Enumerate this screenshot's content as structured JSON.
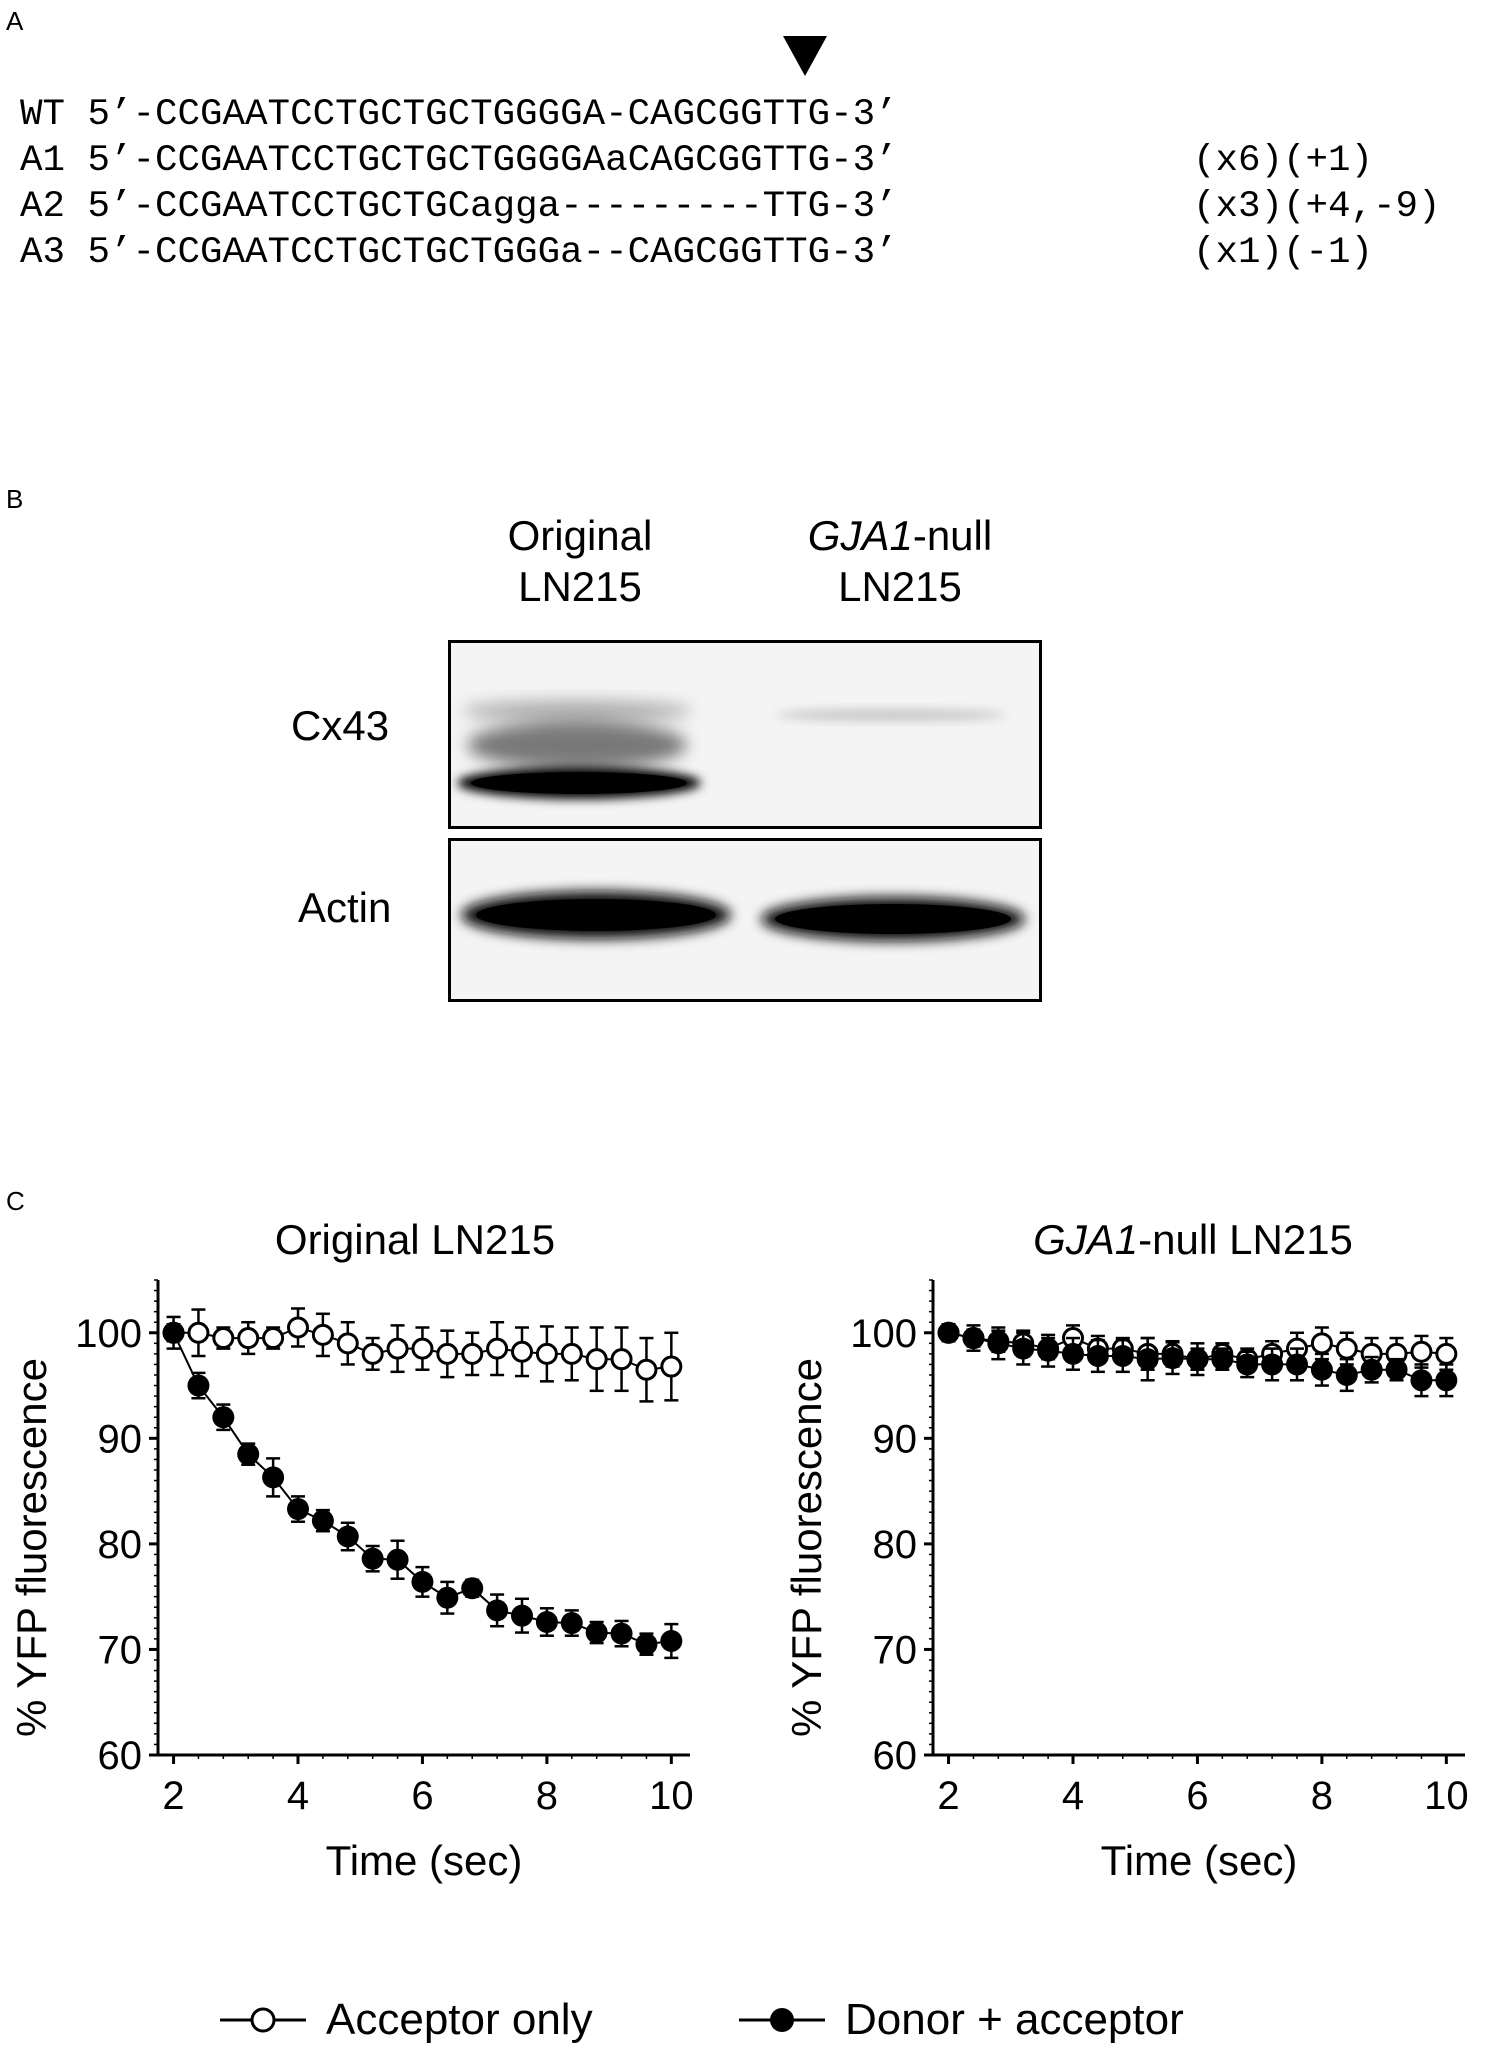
{
  "panelA": {
    "label": "A",
    "rows": [
      {
        "name": "WT",
        "seq": "5’-CCGAATCCTGCTGCTGGGGA-CAGCGGTTG-3’",
        "note": ""
      },
      {
        "name": "A1",
        "seq": "5’-CCGAATCCTGCTGCTGGGGAaCAGCGGTTG-3’",
        "note": "(x6)(+1)"
      },
      {
        "name": "A2",
        "seq": "5’-CCGAATCCTGCTGCagga---------TTG-3’",
        "note": "(x3)(+4,-9)"
      },
      {
        "name": "A3",
        "seq": "5’-CCGAATCCTGCTGCTGGGa--CAGCGGTTG-3’",
        "note": "(x1)(-1)"
      }
    ]
  },
  "panelB": {
    "label": "B",
    "lane1_line1": "Original",
    "lane1_line2": "LN215",
    "lane2_italic": "GJA1",
    "lane2_rest": "-null",
    "lane2_line2": "LN215",
    "row1": "Cx43",
    "row2": "Actin"
  },
  "panelC": {
    "label": "C",
    "legend": {
      "open": "Acceptor only",
      "filled": "Donor + acceptor"
    }
  },
  "chart_data": [
    {
      "type": "scatter",
      "title": "Original LN215",
      "title_italic": "",
      "title_rest": "Original LN215",
      "xlabel": "Time (sec)",
      "ylabel": "% YFP fluorescence",
      "xlim": [
        1.75,
        10.3
      ],
      "ylim": [
        60,
        105
      ],
      "xticks": [
        2,
        4,
        6,
        8,
        10
      ],
      "yticks": [
        60,
        70,
        80,
        90,
        100
      ],
      "series": [
        {
          "name": "Acceptor only",
          "marker": "open",
          "x": [
            2.0,
            2.4,
            2.8,
            3.2,
            3.6,
            4.0,
            4.4,
            4.8,
            5.2,
            5.6,
            6.0,
            6.4,
            6.8,
            7.2,
            7.6,
            8.0,
            8.4,
            8.8,
            9.2,
            9.6,
            10.0
          ],
          "y": [
            100,
            100,
            99.5,
            99.5,
            99.5,
            100.5,
            99.8,
            99,
            98,
            98.5,
            98.5,
            98,
            98,
            98.5,
            98.2,
            98,
            98,
            97.5,
            97.5,
            96.5,
            96.8
          ],
          "err": [
            1.5,
            2.2,
            1.0,
            1.5,
            1.0,
            1.8,
            2.0,
            2.0,
            1.5,
            2.2,
            2.0,
            2.2,
            2.0,
            2.5,
            2.3,
            2.6,
            2.5,
            3.0,
            3.0,
            3.0,
            3.2
          ]
        },
        {
          "name": "Donor + acceptor",
          "marker": "filled",
          "x": [
            2.0,
            2.4,
            2.8,
            3.2,
            3.6,
            4.0,
            4.4,
            4.8,
            5.2,
            5.6,
            6.0,
            6.4,
            6.8,
            7.2,
            7.6,
            8.0,
            8.4,
            8.8,
            9.2,
            9.6,
            10.0
          ],
          "y": [
            100,
            95,
            92,
            88.5,
            86.3,
            83.3,
            82.2,
            80.7,
            78.6,
            78.5,
            76.4,
            74.9,
            75.8,
            73.7,
            73.2,
            72.6,
            72.5,
            71.6,
            71.5,
            70.5,
            70.8
          ],
          "err": [
            0.8,
            1.2,
            1.2,
            1.0,
            1.8,
            1.2,
            1.0,
            1.3,
            1.2,
            1.8,
            1.4,
            1.5,
            0.8,
            1.5,
            1.6,
            1.3,
            1.2,
            1.0,
            1.2,
            1.0,
            1.6
          ]
        }
      ]
    },
    {
      "type": "scatter",
      "title": "GJA1-null LN215",
      "title_italic": "GJA1",
      "title_rest": "-null LN215",
      "xlabel": "Time (sec)",
      "ylabel": "% YFP fluorescence",
      "xlim": [
        1.75,
        10.3
      ],
      "ylim": [
        60,
        105
      ],
      "xticks": [
        2,
        4,
        6,
        8,
        10
      ],
      "yticks": [
        60,
        70,
        80,
        90,
        100
      ],
      "series": [
        {
          "name": "Acceptor only",
          "marker": "open",
          "x": [
            2.0,
            2.4,
            2.8,
            3.2,
            3.6,
            4.0,
            4.4,
            4.8,
            5.2,
            5.6,
            6.0,
            6.4,
            6.8,
            7.2,
            7.6,
            8.0,
            8.4,
            8.8,
            9.2,
            9.6,
            10.0
          ],
          "y": [
            100,
            99.5,
            99.2,
            99,
            98.5,
            99.5,
            98.5,
            98.5,
            98,
            98,
            97.5,
            98,
            97.5,
            98,
            98.5,
            99,
            98.5,
            98,
            98,
            98.2,
            98
          ],
          "err": [
            0.8,
            0.8,
            1.0,
            1.2,
            1.0,
            1.2,
            1.2,
            1.0,
            1.5,
            1.2,
            1.0,
            1.0,
            1.0,
            1.2,
            1.5,
            1.5,
            1.5,
            1.5,
            1.5,
            1.5,
            1.5
          ]
        },
        {
          "name": "Donor + acceptor",
          "marker": "filled",
          "x": [
            2.0,
            2.4,
            2.8,
            3.2,
            3.6,
            4.0,
            4.4,
            4.8,
            5.2,
            5.6,
            6.0,
            6.4,
            6.8,
            7.2,
            7.6,
            8.0,
            8.4,
            8.8,
            9.2,
            9.6,
            10.0
          ],
          "y": [
            100,
            99.5,
            99,
            98.5,
            98.3,
            98,
            97.8,
            97.8,
            97.5,
            97.6,
            97.5,
            97.5,
            97,
            97,
            97,
            96.5,
            96,
            96.5,
            96.5,
            95.5,
            95.5
          ],
          "err": [
            0.8,
            1.2,
            1.5,
            1.5,
            1.5,
            1.5,
            1.5,
            1.5,
            2.0,
            1.5,
            1.5,
            1.0,
            1.2,
            1.5,
            1.5,
            1.5,
            1.5,
            1.2,
            1.0,
            1.5,
            1.5
          ]
        }
      ]
    }
  ]
}
